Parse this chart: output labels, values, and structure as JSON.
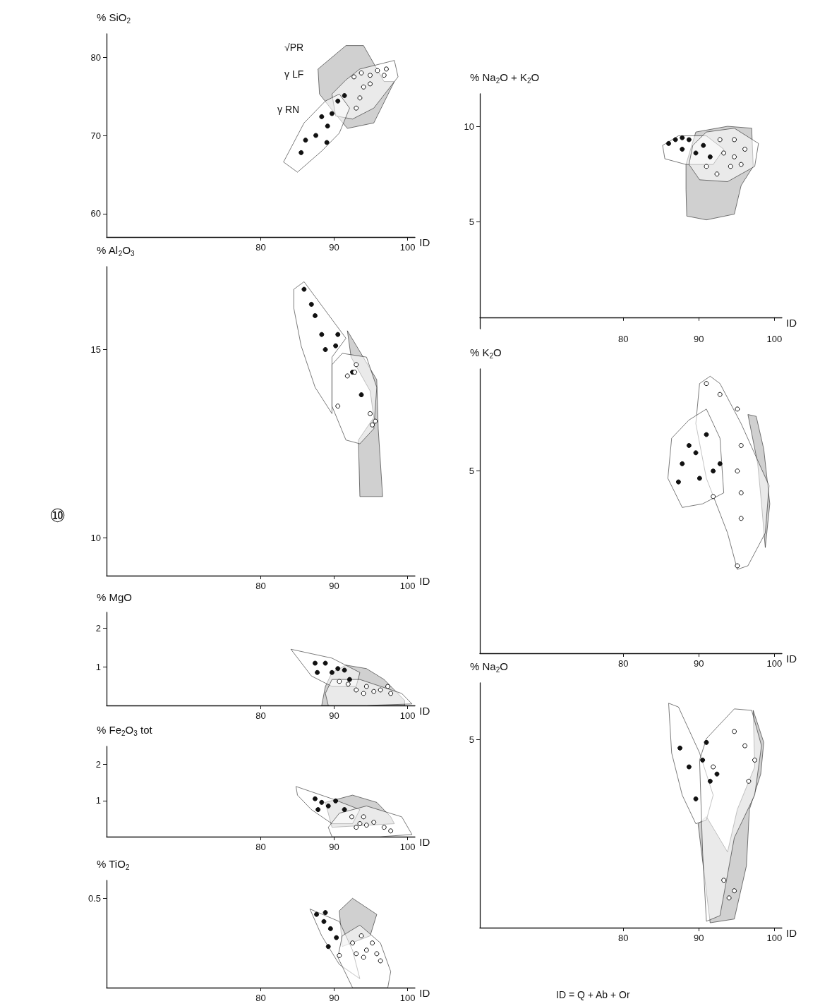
{
  "chart_data": [
    {
      "type": "scatter",
      "ylabel": "% SiO$_{2}$",
      "xlabel": "ID",
      "xlim": [
        59,
        101
      ],
      "ylim": [
        57,
        83
      ],
      "xticks": [
        80,
        90,
        100
      ],
      "yticks": [
        60,
        70,
        80
      ],
      "marker": "circle",
      "annotations": [
        "√PR",
        "γ LF",
        "γ RN"
      ],
      "series": [
        {
          "type": "area",
          "marker": "none",
          "color": "#aaaaaa",
          "x": [
            91.6,
            94,
            96.8,
            98.2,
            95.4,
            91.8,
            89.5,
            88,
            87.8,
            91.6
          ],
          "values": [
            81.5,
            81.5,
            76.9,
            76.9,
            71.6,
            70.9,
            73.5,
            75.3,
            78.5,
            81.5
          ]
        },
        {
          "type": "area",
          "marker": "none",
          "color": "#ffffff",
          "x": [
            89.7,
            91.6,
            93.5,
            98.2,
            98.7,
            95.4,
            92.5,
            90.2,
            89.7
          ],
          "values": [
            75.3,
            77.1,
            78.5,
            79.6,
            77.5,
            73.5,
            72.1,
            72.5,
            75.3
          ]
        },
        {
          "type": "area",
          "marker": "none",
          "color": "#ffffff",
          "x": [
            83.1,
            85.9,
            88.8,
            90.7,
            92.1,
            90.7,
            88.3,
            85,
            83.1
          ],
          "values": [
            66.6,
            71.6,
            74.4,
            75.3,
            73.5,
            70.3,
            68,
            65.3,
            66.6
          ]
        },
        {
          "color": "#111111",
          "x": [
            85.5,
            86.1,
            87.5,
            88.3,
            89.1,
            89.7,
            90.5,
            91.4,
            89
          ],
          "values": [
            67.8,
            69.4,
            70,
            72.4,
            71.2,
            72.8,
            74.4,
            75.1,
            69.1
          ]
        },
        {
          "color": "#ffffff",
          "x": [
            92.7,
            93.7,
            94.9,
            95.9,
            96.8,
            97.1,
            94,
            94.9,
            93.5,
            93
          ],
          "values": [
            77.5,
            78,
            77.7,
            78.3,
            77.7,
            78.5,
            76.2,
            76.6,
            74.8,
            73.5
          ]
        }
      ]
    },
    {
      "type": "scatter",
      "ylabel": "% Al$_{2}$O$_{3}$",
      "xlabel": "ID",
      "xlim": [
        59,
        101
      ],
      "ylim": [
        9,
        17.2
      ],
      "xticks": [
        80,
        90,
        100
      ],
      "yticks": [
        10,
        15
      ],
      "marker": "circle",
      "annotations": [
        "⑩"
      ],
      "series": [
        {
          "type": "area",
          "marker": "none",
          "color": "#aaaaaa",
          "x": [
            91.8,
            95.8,
            96,
            96.6,
            93.5,
            93.3,
            95.4,
            94.9,
            92.3,
            91.8
          ],
          "values": [
            15.5,
            14.2,
            12.9,
            11.1,
            11.1,
            12.6,
            13.2,
            13.9,
            14.8,
            15.5
          ]
        },
        {
          "type": "area",
          "marker": "none",
          "color": "#ffffff",
          "x": [
            84.5,
            85.9,
            91.6,
            89.7,
            89.7,
            87.4,
            85.5,
            84.5,
            84.5
          ],
          "values": [
            16.6,
            16.8,
            15.3,
            14.8,
            13.3,
            14,
            15.1,
            16.1,
            16.6
          ]
        },
        {
          "type": "area",
          "marker": "none",
          "color": "#ffffff",
          "x": [
            89.7,
            91.1,
            94.4,
            95.8,
            95.4,
            93.5,
            91.6,
            89.7,
            89.7
          ],
          "values": [
            14.6,
            14.9,
            14.8,
            14,
            12.9,
            12.5,
            12.6,
            13.5,
            14.6
          ]
        },
        {
          "color": "#111111",
          "x": [
            85.9,
            86.9,
            87.4,
            88.3,
            88.8,
            90.2,
            90.5,
            92.5,
            93.7
          ],
          "values": [
            16.6,
            16.2,
            15.9,
            15.4,
            15,
            15.1,
            15.4,
            14.4,
            13.8
          ]
        },
        {
          "color": "#ffffff",
          "x": [
            91.8,
            92.8,
            90.5,
            94.9,
            95.6,
            95.2,
            93
          ],
          "values": [
            14.3,
            14.4,
            13.5,
            13.3,
            13.1,
            13,
            14.6
          ]
        }
      ]
    },
    {
      "type": "scatter",
      "ylabel": "% MgO",
      "xlabel": "ID",
      "xlim": [
        59,
        101
      ],
      "ylim": [
        0,
        2.4
      ],
      "xticks": [
        80,
        90,
        100
      ],
      "yticks": [
        1,
        2
      ],
      "marker": "circle",
      "series": [
        {
          "type": "area",
          "marker": "none",
          "color": "#aaaaaa",
          "x": [
            89.7,
            91.6,
            94.4,
            96.8,
            99.6,
            99.6,
            88.3,
            88.8,
            89.7
          ],
          "values": [
            0.85,
            1.04,
            0.95,
            0.67,
            0.13,
            0,
            0,
            0.49,
            0.85
          ]
        },
        {
          "type": "area",
          "marker": "none",
          "color": "#ffffff",
          "x": [
            84.1,
            89.7,
            93.5,
            93,
            89.7,
            86.9,
            84.1
          ],
          "values": [
            1.45,
            1.22,
            0.85,
            0.49,
            0.49,
            0.76,
            1.45
          ]
        },
        {
          "type": "area",
          "marker": "none",
          "color": "#ffffff",
          "x": [
            88.8,
            89.7,
            93.5,
            99.2,
            100.6,
            94.4,
            89.2,
            88.8
          ],
          "values": [
            0.31,
            0.67,
            0.67,
            0.31,
            0.04,
            0,
            0,
            0.31
          ]
        },
        {
          "color": "#111111",
          "x": [
            87.4,
            88.8,
            89.7,
            90.5,
            91.4,
            87.7,
            92.1
          ],
          "values": [
            1.09,
            1.09,
            0.85,
            0.95,
            0.91,
            0.85,
            0.67
          ]
        },
        {
          "color": "#ffffff",
          "x": [
            90.7,
            91.9,
            93,
            94.4,
            95.4,
            96.3,
            97.3,
            97.7,
            94
          ],
          "values": [
            0.62,
            0.55,
            0.4,
            0.49,
            0.36,
            0.4,
            0.49,
            0.31,
            0.31
          ]
        }
      ]
    },
    {
      "type": "scatter",
      "ylabel": "% Fe$_{2}$O$_{3}$ tot",
      "xlabel": "ID",
      "xlim": [
        59,
        101
      ],
      "ylim": [
        0,
        2.5
      ],
      "xticks": [
        80,
        90,
        100
      ],
      "yticks": [
        1,
        2
      ],
      "marker": "circle",
      "series": [
        {
          "type": "area",
          "marker": "none",
          "color": "#aaaaaa",
          "x": [
            88.8,
            92.5,
            95.8,
            97.7,
            98.2,
            89.7,
            88.8
          ],
          "values": [
            0.95,
            1.15,
            0.95,
            0.55,
            0.36,
            0.26,
            0.95
          ]
        },
        {
          "type": "area",
          "marker": "none",
          "color": "#ffffff",
          "x": [
            84.8,
            89.7,
            93.5,
            92.5,
            89.7,
            86.9,
            85,
            84.8
          ],
          "values": [
            1.39,
            1.05,
            0.75,
            0.36,
            0.36,
            0.75,
            1.15,
            1.39
          ]
        },
        {
          "type": "area",
          "marker": "none",
          "color": "#ffffff",
          "x": [
            89.2,
            90.7,
            94.4,
            99.2,
            100.6,
            96.3,
            89.7,
            89.2
          ],
          "values": [
            0.26,
            0.65,
            0.85,
            0.55,
            0.06,
            0,
            0,
            0.26
          ]
        },
        {
          "color": "#111111",
          "x": [
            87.4,
            88.3,
            89.2,
            90.2,
            91.4,
            87.8
          ],
          "values": [
            1.05,
            0.95,
            0.85,
            0.99,
            0.75,
            0.75
          ]
        },
        {
          "color": "#ffffff",
          "x": [
            92.4,
            93.5,
            94.4,
            95.4,
            96.8,
            97.7,
            94,
            93
          ],
          "values": [
            0.55,
            0.36,
            0.32,
            0.4,
            0.26,
            0.16,
            0.55,
            0.26
          ]
        }
      ]
    },
    {
      "type": "scatter",
      "ylabel": "% TiO$_{2}$",
      "xlabel": "ID",
      "xlim": [
        59,
        101
      ],
      "ylim": [
        0,
        0.6
      ],
      "xticks": [
        80,
        90,
        100
      ],
      "yticks": [
        0.5
      ],
      "marker": "circle",
      "series": [
        {
          "type": "area",
          "marker": "none",
          "color": "#aaaaaa",
          "x": [
            90.7,
            92.5,
            95.8,
            94.9,
            91.1,
            90.7
          ],
          "values": [
            0.43,
            0.5,
            0.41,
            0.29,
            0.23,
            0.43
          ]
        },
        {
          "type": "area",
          "marker": "none",
          "color": "#ffffff",
          "x": [
            86.7,
            90.7,
            92.5,
            93.5,
            90.7,
            88.3,
            86.7
          ],
          "values": [
            0.44,
            0.37,
            0.21,
            0.05,
            0.13,
            0.29,
            0.44
          ]
        },
        {
          "type": "area",
          "marker": "none",
          "color": "#ffffff",
          "x": [
            91.1,
            93.5,
            96.3,
            97.7,
            97.3,
            92.5,
            90.5,
            91.1
          ],
          "values": [
            0.29,
            0.35,
            0.25,
            0.09,
            0,
            0,
            0.17,
            0.29
          ]
        },
        {
          "color": "#111111",
          "x": [
            87.6,
            88.6,
            88.8,
            89.5,
            90.3,
            89.2
          ],
          "values": [
            0.41,
            0.37,
            0.42,
            0.33,
            0.28,
            0.23
          ]
        },
        {
          "color": "#ffffff",
          "x": [
            92.5,
            93.7,
            94.4,
            95.2,
            95.8,
            96.3,
            94,
            93,
            90.7
          ],
          "values": [
            0.25,
            0.29,
            0.21,
            0.25,
            0.19,
            0.15,
            0.17,
            0.19,
            0.18
          ]
        }
      ]
    },
    {
      "type": "scatter",
      "ylabel": "% Na$_{2}$O + K$_{2}$O",
      "xlabel": "ID",
      "xlim": [
        61,
        101
      ],
      "ylim": [
        -0.6,
        11.7
      ],
      "xticks": [
        80,
        90,
        100
      ],
      "yticks": [
        5,
        10
      ],
      "marker": "circle",
      "series": [
        {
          "type": "area",
          "marker": "none",
          "color": "#aaaaaa",
          "x": [
            88.3,
            89.6,
            93.8,
            97,
            97.2,
            95.6,
            94.7,
            91,
            88.4,
            88.3,
            88.3
          ],
          "values": [
            8,
            9.7,
            10,
            9.9,
            7.9,
            6.9,
            5.4,
            5.1,
            5.3,
            6.7,
            8
          ]
        },
        {
          "type": "area",
          "marker": "none",
          "color": "#ffffff",
          "x": [
            85.2,
            87.3,
            91,
            93.3,
            91.9,
            88.3,
            85.5,
            85.2
          ],
          "values": [
            9,
            9.5,
            9.5,
            8.8,
            8,
            8,
            8.3,
            9
          ]
        },
        {
          "type": "area",
          "marker": "none",
          "color": "#ffffff",
          "x": [
            89.2,
            91,
            94.7,
            97.9,
            97.4,
            93.8,
            90.1,
            88.7,
            89.2
          ],
          "values": [
            9,
            9.7,
            9.9,
            9.1,
            7.9,
            7.1,
            7.2,
            8,
            9
          ]
        },
        {
          "color": "#111111",
          "x": [
            86,
            86.9,
            87.8,
            88.7,
            89.6,
            90.6,
            91.5,
            87.8
          ],
          "values": [
            9.1,
            9.3,
            9.4,
            9.3,
            8.6,
            9,
            8.4,
            8.8
          ]
        },
        {
          "color": "#ffffff",
          "x": [
            92.8,
            94.7,
            93.3,
            94.7,
            96.1,
            91,
            92.4,
            94.2,
            95.6
          ],
          "values": [
            9.3,
            9.3,
            8.6,
            8.4,
            8.8,
            7.9,
            7.5,
            7.9,
            8
          ]
        }
      ]
    },
    {
      "type": "scatter",
      "ylabel": "% K$_{2}$O",
      "xlabel": "ID",
      "xlim": [
        61,
        101
      ],
      "ylim": [
        0,
        7.8
      ],
      "xticks": [
        80,
        90,
        100
      ],
      "yticks": [
        5
      ],
      "marker": "circle",
      "series": [
        {
          "type": "area",
          "marker": "none",
          "color": "#aaaaaa",
          "x": [
            96.5,
            97.6,
            98.6,
            99.4,
            98.8,
            98.3,
            97.8,
            96.5
          ],
          "values": [
            6.55,
            6.5,
            5.6,
            4.1,
            2.9,
            4.1,
            5.2,
            6.55
          ]
        },
        {
          "type": "area",
          "marker": "none",
          "color": "#ffffff",
          "x": [
            90.1,
            91.5,
            92.8,
            95.6,
            99.3,
            98.8,
            96.5,
            95.1,
            93.8,
            91,
            89.6,
            90.1
          ],
          "values": [
            7.4,
            7.6,
            7.4,
            6.3,
            4.6,
            3.3,
            2.4,
            2.3,
            3.3,
            4.8,
            6.3,
            7.4
          ]
        },
        {
          "type": "area",
          "marker": "none",
          "color": "#ffffff",
          "x": [
            86.4,
            88.7,
            91,
            92.8,
            93.3,
            90.5,
            87.8,
            85.9,
            86.4
          ],
          "values": [
            5.9,
            6.4,
            6.7,
            5.9,
            4.4,
            4.1,
            4,
            4.8,
            5.9
          ]
        },
        {
          "color": "#111111",
          "x": [
            88.7,
            87.8,
            89.6,
            91,
            90.1,
            91.9,
            92.8,
            87.3
          ],
          "values": [
            5.7,
            5.2,
            5.5,
            6,
            4.8,
            5,
            5.2,
            4.7
          ]
        },
        {
          "color": "#ffffff",
          "x": [
            91,
            92.8,
            95.1,
            95.6,
            95.1,
            95.6,
            95.6,
            95.1,
            91.9
          ],
          "values": [
            7.4,
            7.1,
            6.7,
            5.7,
            5,
            3.7,
            4.4,
            2.4,
            4.3
          ]
        }
      ]
    },
    {
      "type": "scatter",
      "ylabel": "% Na$_{2}$O",
      "xlabel": "ID",
      "xlim": [
        61,
        101
      ],
      "ylim": [
        0,
        6.5
      ],
      "xticks": [
        80,
        90,
        100
      ],
      "yticks": [
        5
      ],
      "marker": "circle",
      "annotations": [
        "ID = Q + Ab + Or"
      ],
      "series": [
        {
          "type": "area",
          "marker": "none",
          "color": "#aaaaaa",
          "x": [
            97.2,
            98.6,
            98.2,
            96.7,
            96.3,
            94.7,
            91.5,
            89.9,
            91,
            93.8,
            95.1,
            97.4,
            97.2
          ],
          "values": [
            5.77,
            4.92,
            4.08,
            3.14,
            1.64,
            0.23,
            0.13,
            2.76,
            2.95,
            2.01,
            3.14,
            4.27,
            5.77
          ]
        },
        {
          "type": "area",
          "marker": "none",
          "color": "#ffffff",
          "x": [
            86,
            87.3,
            90.1,
            91.9,
            91,
            89.6,
            87.8,
            86.4,
            86
          ],
          "values": [
            5.96,
            5.86,
            4.64,
            3.52,
            2.86,
            2.76,
            3.52,
            4.64,
            5.96
          ]
        },
        {
          "type": "area",
          "marker": "none",
          "color": "#ffffff",
          "x": [
            91,
            94.7,
            97,
            98.3,
            97.4,
            94.7,
            92.8,
            91,
            90.5,
            90.1,
            91
          ],
          "values": [
            5.02,
            5.81,
            5.77,
            4.83,
            3.52,
            2.39,
            0.32,
            0.17,
            2.01,
            4.45,
            5.02
          ]
        },
        {
          "color": "#111111",
          "x": [
            87.5,
            88.7,
            90.5,
            91.5,
            89.6,
            91,
            92.4
          ],
          "values": [
            4.77,
            4.27,
            4.45,
            3.89,
            3.42,
            4.92,
            4.08
          ]
        },
        {
          "color": "#ffffff",
          "x": [
            94.7,
            96.1,
            96.6,
            97.4,
            94.7,
            94,
            93.3,
            91.9
          ],
          "values": [
            5.21,
            4.83,
            3.89,
            4.45,
            0.98,
            0.79,
            1.26,
            4.27
          ]
        }
      ]
    }
  ]
}
